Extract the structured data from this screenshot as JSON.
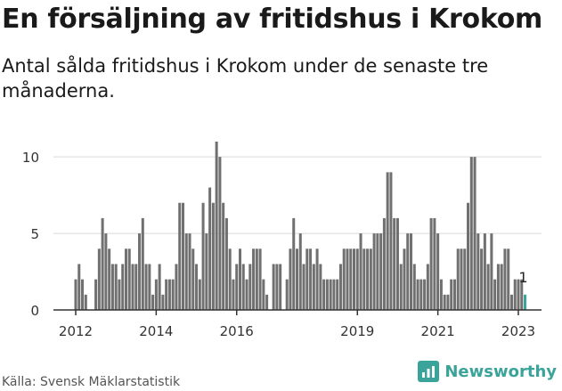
{
  "title": "En försäljning av fritidshus i Krokom",
  "subtitle": "Antal sålda fritidshus i Krokom under de senaste tre månaderna.",
  "source": "Källa: Svensk Mäklarstatistik",
  "brand": "Newsworthy",
  "colors": {
    "bar": "#707070",
    "highlight": "#3aa39a",
    "grid": "#d9d9d9",
    "axis": "#333333",
    "brand": "#3aa39a"
  },
  "chart_data": {
    "type": "bar",
    "title": "En försäljning av fritidshus i Krokom",
    "xlabel": "",
    "ylabel": "",
    "ylim": [
      0,
      11
    ],
    "yticks": [
      0,
      5,
      10
    ],
    "xticks": [
      "2012",
      "2014",
      "2016",
      "2019",
      "2021",
      "2023"
    ],
    "x_start": "2012-01",
    "x_end": "2023-01",
    "grid": true,
    "highlight_label": "1",
    "values": [
      2,
      3,
      2,
      1,
      0,
      0,
      2,
      4,
      6,
      5,
      4,
      3,
      3,
      2,
      3,
      4,
      4,
      3,
      3,
      5,
      6,
      3,
      3,
      1,
      2,
      3,
      1,
      2,
      2,
      2,
      3,
      7,
      7,
      5,
      5,
      4,
      3,
      2,
      7,
      5,
      8,
      7,
      11,
      10,
      7,
      6,
      4,
      2,
      3,
      4,
      3,
      2,
      3,
      4,
      4,
      4,
      2,
      1,
      0,
      3,
      3,
      3,
      0,
      2,
      4,
      6,
      4,
      5,
      3,
      4,
      4,
      3,
      4,
      3,
      2,
      2,
      2,
      2,
      2,
      3,
      4,
      4,
      4,
      4,
      4,
      5,
      4,
      4,
      4,
      5,
      5,
      5,
      6,
      9,
      9,
      6,
      6,
      3,
      4,
      5,
      5,
      3,
      2,
      2,
      2,
      3,
      6,
      6,
      5,
      2,
      1,
      1,
      2,
      2,
      4,
      4,
      4,
      7,
      10,
      10,
      5,
      4,
      5,
      3,
      5,
      2,
      3,
      3,
      4,
      4,
      1,
      2,
      2,
      2,
      1
    ],
    "highlight_index": 134
  }
}
